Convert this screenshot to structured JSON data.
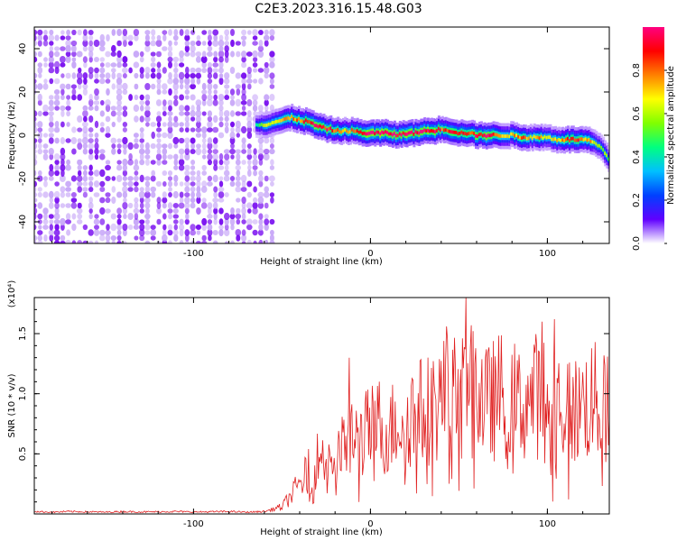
{
  "title": "C2E3.2023.316.15.48.G03",
  "chart_data": [
    {
      "type": "heatmap",
      "xlabel": "Height of straight line (km)",
      "ylabel": "Frequency (Hz)",
      "xlim": [
        -190,
        135
      ],
      "ylim": [
        -50,
        50
      ],
      "xticks": [
        -100,
        0,
        100
      ],
      "yticks": [
        40,
        20,
        0,
        -20,
        -40
      ],
      "colorbar": {
        "label": "Normalized spectral amplitude",
        "range": [
          0,
          1
        ],
        "ticks": [
          0.0,
          0.2,
          0.4,
          0.6,
          0.8
        ],
        "colors": [
          "#ffffff",
          "#6000ff",
          "#0040ff",
          "#00c0ff",
          "#00ff80",
          "#80ff00",
          "#ffff00",
          "#ff8000",
          "#ff0000",
          "#ff0080"
        ]
      },
      "noise_region": {
        "x_from": -190,
        "x_to": -55,
        "amplitude_range": [
          0.0,
          0.15
        ]
      },
      "ridge": {
        "x": [
          -65,
          -60,
          -55,
          -50,
          -45,
          -40,
          -35,
          -30,
          -25,
          -20,
          -15,
          -10,
          -5,
          0,
          5,
          10,
          15,
          20,
          25,
          30,
          35,
          40,
          45,
          50,
          55,
          60,
          65,
          70,
          75,
          80,
          85,
          90,
          95,
          100,
          105,
          110,
          115,
          120,
          125,
          130,
          135
        ],
        "y": [
          5,
          5,
          6,
          7,
          8,
          7,
          6,
          4,
          3,
          2,
          2,
          2,
          1,
          1,
          1,
          1,
          0,
          1,
          1,
          2,
          2,
          3,
          2,
          1,
          1,
          0,
          0,
          0,
          0,
          0,
          -1,
          -1,
          -1,
          -1,
          -2,
          -2,
          -2,
          -2,
          -3,
          -6,
          -12
        ],
        "amp": [
          0.3,
          0.5,
          0.5,
          0.6,
          0.7,
          0.7,
          0.8,
          0.8,
          0.8,
          0.7,
          0.6,
          0.7,
          0.8,
          0.9,
          0.9,
          0.9,
          0.8,
          0.9,
          0.8,
          0.9,
          0.9,
          0.7,
          0.8,
          0.8,
          0.7,
          0.8,
          0.9,
          0.7,
          0.6,
          0.6,
          0.7,
          0.6,
          0.7,
          0.5,
          0.6,
          0.7,
          0.8,
          0.7,
          0.6,
          0.5,
          0.4
        ]
      }
    },
    {
      "type": "line",
      "xlabel": "Height of straight line (km)",
      "ylabel": "SNR (10 * v/v)",
      "y_multiplier_label": "(x10⁴)",
      "xlim": [
        -190,
        135
      ],
      "ylim": [
        0,
        18000
      ],
      "xticks": [
        -100,
        0,
        100
      ],
      "yticks": [
        5000,
        10000,
        15000
      ],
      "ytick_labels": [
        "0.5",
        "1.0",
        "1.5"
      ],
      "color": "#e02020",
      "series": [
        {
          "x": [
            -190,
            -180,
            -170,
            -160,
            -150,
            -140,
            -130,
            -120,
            -110,
            -100,
            -90,
            -80,
            -70,
            -60,
            -50,
            -45,
            -40,
            -35,
            -30,
            -25,
            -20,
            -15,
            -12,
            -10,
            -5,
            0,
            5,
            10,
            15,
            20,
            25,
            30,
            35,
            40,
            45,
            50,
            55,
            60,
            65,
            70,
            75,
            80,
            85,
            90,
            95,
            100,
            105,
            110,
            115,
            120,
            125,
            130,
            135
          ],
          "values": [
            200,
            150,
            200,
            180,
            150,
            200,
            170,
            180,
            200,
            160,
            180,
            200,
            150,
            200,
            600,
            1500,
            2500,
            3500,
            4500,
            5000,
            4500,
            5500,
            7000,
            6000,
            6500,
            7000,
            7500,
            6500,
            8000,
            8000,
            8500,
            8500,
            9000,
            9500,
            10000,
            9500,
            10000,
            10500,
            9000,
            9500,
            10000,
            9500,
            9000,
            9500,
            10000,
            9000,
            9500,
            9000,
            8500,
            9000,
            9500,
            9000,
            8500
          ],
          "peaks": [
            {
              "x": -12,
              "value": 13000
            },
            {
              "x": 43,
              "value": 15600
            },
            {
              "x": 54,
              "value": 18000
            },
            {
              "x": 58,
              "value": 15200
            },
            {
              "x": 97,
              "value": 16000
            },
            {
              "x": 104,
              "value": 16200
            }
          ]
        }
      ]
    }
  ]
}
